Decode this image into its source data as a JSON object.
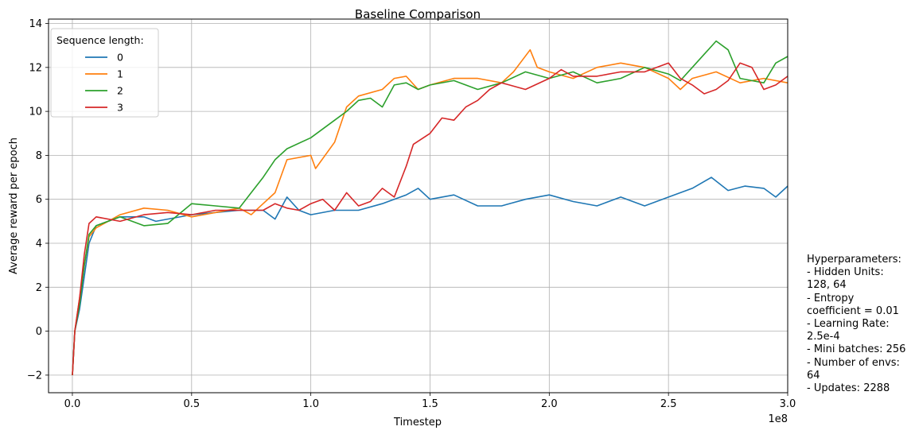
{
  "chart_data": {
    "type": "line",
    "title": "Baseline Comparison",
    "xlabel": "Timestep",
    "ylabel": "Average reward per epoch",
    "x_offset_label": "1e8",
    "xlim": [
      -0.1,
      3.0
    ],
    "ylim": [
      -2.8,
      14.2
    ],
    "x_ticks": [
      0.0,
      0.5,
      1.0,
      1.5,
      2.0,
      2.5,
      3.0
    ],
    "x_tick_labels": [
      "0.0",
      "0.5",
      "1.0",
      "1.5",
      "2.0",
      "2.5",
      "3.0"
    ],
    "y_ticks": [
      -2,
      0,
      2,
      4,
      6,
      8,
      10,
      12,
      14
    ],
    "y_tick_labels": [
      "−2",
      "0",
      "2",
      "4",
      "6",
      "8",
      "10",
      "12",
      "14"
    ],
    "grid": true,
    "legend": {
      "title": "Sequence length:",
      "placement": "top-left"
    },
    "series": [
      {
        "name": "0",
        "color": "#1f77b4",
        "points": [
          [
            0.0,
            -2.0
          ],
          [
            0.01,
            0.0
          ],
          [
            0.03,
            1.0
          ],
          [
            0.05,
            2.5
          ],
          [
            0.07,
            4.0
          ],
          [
            0.1,
            4.8
          ],
          [
            0.15,
            5.0
          ],
          [
            0.2,
            5.2
          ],
          [
            0.3,
            5.2
          ],
          [
            0.35,
            5.0
          ],
          [
            0.4,
            5.1
          ],
          [
            0.5,
            5.3
          ],
          [
            0.6,
            5.4
          ],
          [
            0.7,
            5.5
          ],
          [
            0.8,
            5.5
          ],
          [
            0.85,
            5.1
          ],
          [
            0.9,
            6.1
          ],
          [
            0.95,
            5.5
          ],
          [
            1.0,
            5.3
          ],
          [
            1.1,
            5.5
          ],
          [
            1.2,
            5.5
          ],
          [
            1.3,
            5.8
          ],
          [
            1.4,
            6.2
          ],
          [
            1.45,
            6.5
          ],
          [
            1.5,
            6.0
          ],
          [
            1.6,
            6.2
          ],
          [
            1.7,
            5.7
          ],
          [
            1.8,
            5.7
          ],
          [
            1.9,
            6.0
          ],
          [
            2.0,
            6.2
          ],
          [
            2.1,
            5.9
          ],
          [
            2.2,
            5.7
          ],
          [
            2.3,
            6.1
          ],
          [
            2.4,
            5.7
          ],
          [
            2.5,
            6.1
          ],
          [
            2.6,
            6.5
          ],
          [
            2.68,
            7.0
          ],
          [
            2.75,
            6.4
          ],
          [
            2.82,
            6.6
          ],
          [
            2.9,
            6.5
          ],
          [
            2.95,
            6.1
          ],
          [
            3.0,
            6.6
          ]
        ]
      },
      {
        "name": "1",
        "color": "#ff7f0e",
        "points": [
          [
            0.0,
            -2.0
          ],
          [
            0.01,
            0.0
          ],
          [
            0.03,
            1.5
          ],
          [
            0.05,
            3.0
          ],
          [
            0.07,
            4.3
          ],
          [
            0.1,
            4.7
          ],
          [
            0.15,
            5.0
          ],
          [
            0.2,
            5.3
          ],
          [
            0.3,
            5.6
          ],
          [
            0.4,
            5.5
          ],
          [
            0.5,
            5.2
          ],
          [
            0.6,
            5.4
          ],
          [
            0.7,
            5.6
          ],
          [
            0.75,
            5.3
          ],
          [
            0.8,
            5.8
          ],
          [
            0.85,
            6.3
          ],
          [
            0.9,
            7.8
          ],
          [
            1.0,
            8.0
          ],
          [
            1.02,
            7.4
          ],
          [
            1.1,
            8.6
          ],
          [
            1.15,
            10.2
          ],
          [
            1.2,
            10.7
          ],
          [
            1.3,
            11.0
          ],
          [
            1.35,
            11.5
          ],
          [
            1.4,
            11.6
          ],
          [
            1.45,
            11.0
          ],
          [
            1.5,
            11.2
          ],
          [
            1.6,
            11.5
          ],
          [
            1.7,
            11.5
          ],
          [
            1.8,
            11.3
          ],
          [
            1.85,
            11.8
          ],
          [
            1.92,
            12.8
          ],
          [
            1.95,
            12.0
          ],
          [
            2.0,
            11.8
          ],
          [
            2.1,
            11.5
          ],
          [
            2.2,
            12.0
          ],
          [
            2.3,
            12.2
          ],
          [
            2.4,
            12.0
          ],
          [
            2.5,
            11.5
          ],
          [
            2.55,
            11.0
          ],
          [
            2.6,
            11.5
          ],
          [
            2.7,
            11.8
          ],
          [
            2.8,
            11.3
          ],
          [
            2.9,
            11.5
          ],
          [
            3.0,
            11.3
          ]
        ]
      },
      {
        "name": "2",
        "color": "#2ca02c",
        "points": [
          [
            0.0,
            -2.0
          ],
          [
            0.01,
            0.0
          ],
          [
            0.03,
            1.2
          ],
          [
            0.05,
            3.0
          ],
          [
            0.07,
            4.4
          ],
          [
            0.1,
            4.8
          ],
          [
            0.2,
            5.2
          ],
          [
            0.3,
            4.8
          ],
          [
            0.4,
            4.9
          ],
          [
            0.5,
            5.8
          ],
          [
            0.6,
            5.7
          ],
          [
            0.7,
            5.6
          ],
          [
            0.75,
            6.3
          ],
          [
            0.8,
            7.0
          ],
          [
            0.85,
            7.8
          ],
          [
            0.9,
            8.3
          ],
          [
            1.0,
            8.8
          ],
          [
            1.1,
            9.6
          ],
          [
            1.15,
            10.0
          ],
          [
            1.2,
            10.5
          ],
          [
            1.25,
            10.6
          ],
          [
            1.3,
            10.2
          ],
          [
            1.35,
            11.2
          ],
          [
            1.4,
            11.3
          ],
          [
            1.45,
            11.0
          ],
          [
            1.5,
            11.2
          ],
          [
            1.6,
            11.4
          ],
          [
            1.7,
            11.0
          ],
          [
            1.8,
            11.3
          ],
          [
            1.9,
            11.8
          ],
          [
            2.0,
            11.5
          ],
          [
            2.1,
            11.8
          ],
          [
            2.2,
            11.3
          ],
          [
            2.3,
            11.5
          ],
          [
            2.4,
            12.0
          ],
          [
            2.5,
            11.7
          ],
          [
            2.55,
            11.4
          ],
          [
            2.6,
            12.0
          ],
          [
            2.65,
            12.6
          ],
          [
            2.7,
            13.2
          ],
          [
            2.75,
            12.8
          ],
          [
            2.8,
            11.5
          ],
          [
            2.9,
            11.3
          ],
          [
            2.95,
            12.2
          ],
          [
            3.0,
            12.5
          ]
        ]
      },
      {
        "name": "3",
        "color": "#d62728",
        "points": [
          [
            0.0,
            -2.0
          ],
          [
            0.01,
            0.0
          ],
          [
            0.03,
            1.5
          ],
          [
            0.05,
            3.5
          ],
          [
            0.07,
            4.9
          ],
          [
            0.1,
            5.2
          ],
          [
            0.2,
            5.0
          ],
          [
            0.3,
            5.3
          ],
          [
            0.4,
            5.4
          ],
          [
            0.5,
            5.3
          ],
          [
            0.6,
            5.5
          ],
          [
            0.7,
            5.5
          ],
          [
            0.8,
            5.5
          ],
          [
            0.85,
            5.8
          ],
          [
            0.9,
            5.6
          ],
          [
            0.95,
            5.5
          ],
          [
            1.0,
            5.8
          ],
          [
            1.05,
            6.0
          ],
          [
            1.1,
            5.5
          ],
          [
            1.15,
            6.3
          ],
          [
            1.2,
            5.7
          ],
          [
            1.25,
            5.9
          ],
          [
            1.3,
            6.5
          ],
          [
            1.35,
            6.1
          ],
          [
            1.4,
            7.5
          ],
          [
            1.43,
            8.5
          ],
          [
            1.5,
            9.0
          ],
          [
            1.55,
            9.7
          ],
          [
            1.6,
            9.6
          ],
          [
            1.65,
            10.2
          ],
          [
            1.7,
            10.5
          ],
          [
            1.75,
            11.0
          ],
          [
            1.8,
            11.3
          ],
          [
            1.9,
            11.0
          ],
          [
            2.0,
            11.5
          ],
          [
            2.05,
            11.9
          ],
          [
            2.1,
            11.6
          ],
          [
            2.2,
            11.6
          ],
          [
            2.3,
            11.8
          ],
          [
            2.4,
            11.8
          ],
          [
            2.5,
            12.2
          ],
          [
            2.55,
            11.5
          ],
          [
            2.6,
            11.2
          ],
          [
            2.65,
            10.8
          ],
          [
            2.7,
            11.0
          ],
          [
            2.75,
            11.4
          ],
          [
            2.8,
            12.2
          ],
          [
            2.85,
            12.0
          ],
          [
            2.9,
            11.0
          ],
          [
            2.95,
            11.2
          ],
          [
            3.0,
            11.6
          ]
        ]
      }
    ]
  },
  "hyperparameters": {
    "lines": [
      "Hyperparameters:",
      "- Hidden Units:",
      "128, 64",
      "- Entropy",
      "coefficient = 0.01",
      "- Learning Rate:",
      "2.5e-4",
      "- Mini batches: 256",
      "- Number of envs:",
      "64",
      "- Updates: 2288"
    ]
  }
}
